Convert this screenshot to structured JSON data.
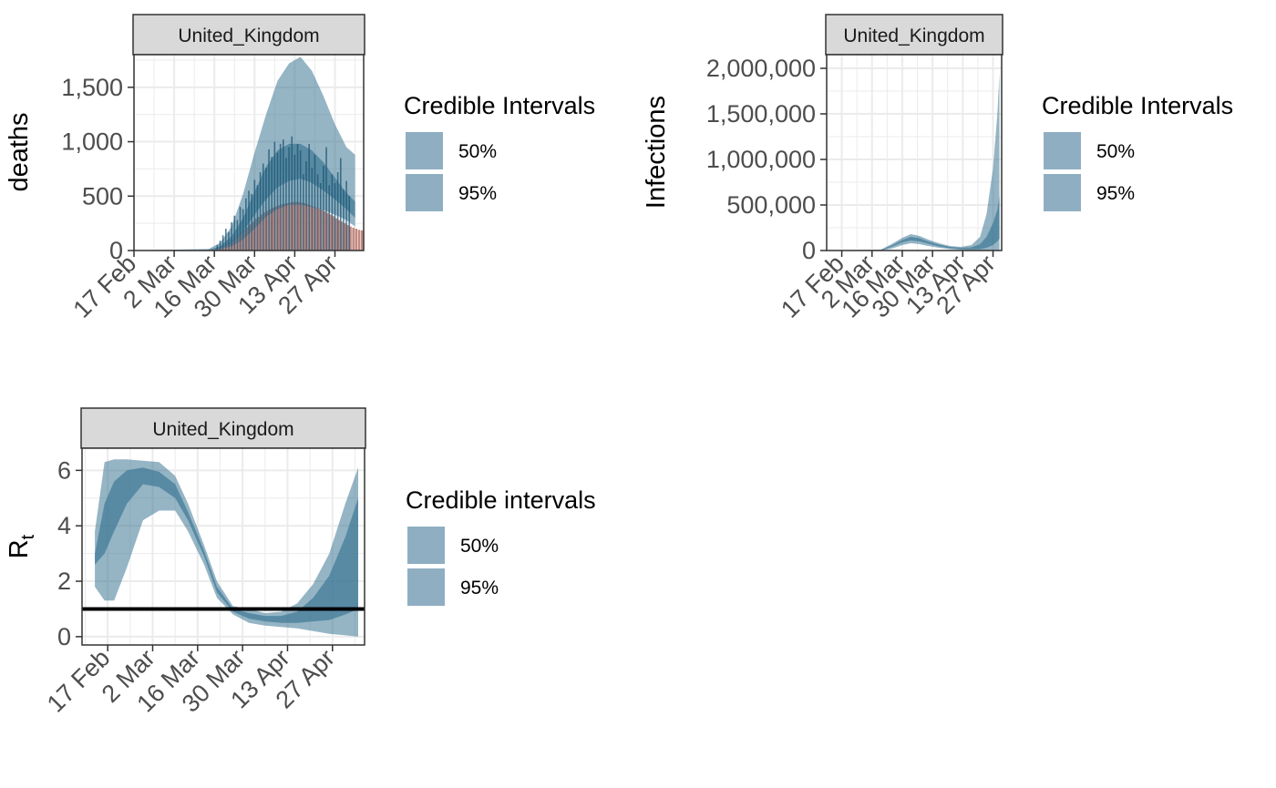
{
  "chart_data": [
    {
      "type": "area",
      "panel": "deaths",
      "strip": "United_Kingdom",
      "ylabel": "deaths",
      "x_ticks": [
        "17 Feb",
        "2 Mar",
        "16 Mar",
        "30 Mar",
        "13 Apr",
        "27 Apr"
      ],
      "x_tick_dates": [
        "2020-02-17",
        "2020-03-02",
        "2020-03-16",
        "2020-03-30",
        "2020-04-13",
        "2020-04-27"
      ],
      "xlim": [
        "2020-02-17",
        "2020-05-07"
      ],
      "y_ticks": [
        0,
        500,
        1000,
        1500
      ],
      "y_tick_labels": [
        "0",
        "500",
        "1,000",
        "1,500"
      ],
      "ylim": [
        0,
        1800
      ],
      "grid": true,
      "legend": {
        "title": "Credible Intervals",
        "position": "right",
        "entries": [
          "50%",
          "95%"
        ]
      },
      "series": [
        {
          "name": "95%",
          "color": "#3e7896",
          "opacity": 0.55,
          "x": [
            "2020-02-17",
            "2020-03-14",
            "2020-03-18",
            "2020-03-22",
            "2020-03-26",
            "2020-03-30",
            "2020-04-03",
            "2020-04-07",
            "2020-04-11",
            "2020-04-15",
            "2020-04-19",
            "2020-04-23",
            "2020-04-27",
            "2020-05-01",
            "2020-05-04"
          ],
          "low": [
            0,
            0,
            10,
            40,
            100,
            200,
            310,
            380,
            420,
            420,
            400,
            370,
            330,
            280,
            220
          ],
          "high": [
            0,
            15,
            70,
            220,
            520,
            900,
            1250,
            1560,
            1720,
            1780,
            1650,
            1420,
            1160,
            950,
            880
          ]
        },
        {
          "name": "50%",
          "color": "#3e7896",
          "opacity": 0.7,
          "x": [
            "2020-02-17",
            "2020-03-14",
            "2020-03-18",
            "2020-03-22",
            "2020-03-26",
            "2020-03-30",
            "2020-04-03",
            "2020-04-07",
            "2020-04-11",
            "2020-04-15",
            "2020-04-19",
            "2020-04-23",
            "2020-04-27",
            "2020-05-01",
            "2020-05-04"
          ],
          "low": [
            0,
            0,
            20,
            70,
            170,
            330,
            470,
            580,
            640,
            660,
            620,
            550,
            470,
            380,
            300
          ],
          "high": [
            0,
            5,
            40,
            130,
            300,
            540,
            770,
            920,
            980,
            980,
            920,
            810,
            670,
            530,
            450
          ]
        }
      ],
      "observed_bars": {
        "color": "#b9736b",
        "start": "2020-03-07",
        "values": [
          1,
          1,
          1,
          2,
          3,
          5,
          7,
          9,
          12,
          18,
          25,
          35,
          45,
          60,
          75,
          95,
          115,
          140,
          165,
          190,
          215,
          240,
          265,
          290,
          310,
          330,
          350,
          365,
          380,
          395,
          405,
          415,
          425,
          430,
          435,
          440,
          445,
          445,
          445,
          440,
          435,
          425,
          415,
          405,
          395,
          385,
          375,
          360,
          345,
          330,
          315,
          295,
          280,
          265,
          250,
          235,
          220,
          210,
          200,
          190,
          185,
          180
        ]
      },
      "observed_lines": {
        "color": "#1c5470",
        "start": "2020-03-17",
        "values": [
          50,
          90,
          140,
          200,
          170,
          260,
          320,
          280,
          400,
          380,
          480,
          550,
          520,
          650,
          600,
          720,
          800,
          760,
          930,
          860,
          1000,
          900,
          980,
          1020,
          850,
          950,
          1050,
          880,
          980,
          920,
          700,
          820,
          980,
          760,
          880,
          700,
          620,
          780,
          950,
          600,
          700,
          620,
          720,
          850,
          560,
          640,
          500
        ]
      }
    },
    {
      "type": "area",
      "panel": "infections",
      "strip": "United_Kingdom",
      "ylabel": "Infections",
      "x_ticks": [
        "17 Feb",
        "2 Mar",
        "16 Mar",
        "30 Mar",
        "13 Apr",
        "27 Apr"
      ],
      "x_tick_dates": [
        "2020-02-17",
        "2020-03-02",
        "2020-03-16",
        "2020-03-30",
        "2020-04-13",
        "2020-04-27"
      ],
      "xlim": [
        "2020-02-10",
        "2020-05-01"
      ],
      "y_ticks": [
        0,
        500000,
        1000000,
        1500000,
        2000000
      ],
      "y_tick_labels": [
        "0",
        "500,000",
        "1,000,000",
        "1,500,000",
        "2,000,000"
      ],
      "ylim": [
        0,
        2150000
      ],
      "grid": true,
      "legend": {
        "title": "Credible Intervals",
        "position": "right",
        "entries": [
          "50%",
          "95%"
        ]
      },
      "series": [
        {
          "name": "95%",
          "color": "#3e7896",
          "opacity": 0.55,
          "x": [
            "2020-02-10",
            "2020-03-06",
            "2020-03-11",
            "2020-03-16",
            "2020-03-20",
            "2020-03-24",
            "2020-03-28",
            "2020-04-02",
            "2020-04-07",
            "2020-04-12",
            "2020-04-17",
            "2020-04-21",
            "2020-04-24",
            "2020-04-27",
            "2020-04-29",
            "2020-04-30"
          ],
          "low": [
            0,
            0,
            20000,
            60000,
            80000,
            70000,
            50000,
            30000,
            15000,
            8000,
            4000,
            2000,
            1000,
            500,
            200,
            100
          ],
          "high": [
            0,
            10000,
            70000,
            140000,
            180000,
            160000,
            120000,
            80000,
            50000,
            40000,
            60000,
            150000,
            400000,
            900000,
            1500000,
            1950000
          ]
        },
        {
          "name": "50%",
          "color": "#3e7896",
          "opacity": 0.7,
          "x": [
            "2020-02-10",
            "2020-03-06",
            "2020-03-11",
            "2020-03-16",
            "2020-03-20",
            "2020-03-24",
            "2020-03-28",
            "2020-04-02",
            "2020-04-07",
            "2020-04-12",
            "2020-04-17",
            "2020-04-21",
            "2020-04-24",
            "2020-04-27",
            "2020-04-29",
            "2020-04-30"
          ],
          "low": [
            0,
            0,
            40000,
            90000,
            110000,
            100000,
            75000,
            45000,
            25000,
            15000,
            12000,
            15000,
            30000,
            60000,
            100000,
            130000
          ],
          "high": [
            0,
            5000,
            55000,
            115000,
            150000,
            135000,
            100000,
            65000,
            40000,
            30000,
            35000,
            70000,
            150000,
            300000,
            450000,
            600000
          ]
        }
      ]
    },
    {
      "type": "area",
      "panel": "rt",
      "strip": "United_Kingdom",
      "ylabel": "Rt",
      "x_ticks": [
        "17 Feb",
        "2 Mar",
        "16 Mar",
        "30 Mar",
        "13 Apr",
        "27 Apr"
      ],
      "x_tick_dates": [
        "2020-02-17",
        "2020-03-02",
        "2020-03-16",
        "2020-03-30",
        "2020-04-13",
        "2020-04-27"
      ],
      "xlim": [
        "2020-02-09",
        "2020-05-07"
      ],
      "y_ticks": [
        0,
        2,
        4,
        6
      ],
      "y_tick_labels": [
        "0",
        "2",
        "4",
        "6"
      ],
      "ylim": [
        -0.3,
        6.8
      ],
      "grid": true,
      "reference_line": 1,
      "legend": {
        "title": "Credible intervals",
        "position": "right",
        "entries": [
          "50%",
          "95%"
        ]
      },
      "series": [
        {
          "name": "95%",
          "color": "#3e7896",
          "opacity": 0.55,
          "x": [
            "2020-02-13",
            "2020-02-16",
            "2020-02-19",
            "2020-02-23",
            "2020-02-28",
            "2020-03-04",
            "2020-03-09",
            "2020-03-13",
            "2020-03-18",
            "2020-03-22",
            "2020-03-27",
            "2020-04-01",
            "2020-04-06",
            "2020-04-11",
            "2020-04-16",
            "2020-04-21",
            "2020-04-26",
            "2020-05-01",
            "2020-05-05"
          ],
          "low": [
            1.8,
            1.3,
            1.3,
            2.5,
            4.2,
            4.55,
            4.55,
            3.8,
            2.6,
            1.4,
            0.8,
            0.5,
            0.4,
            0.35,
            0.3,
            0.2,
            0.1,
            0.05,
            0.0
          ],
          "high": [
            3.8,
            6.3,
            6.4,
            6.4,
            6.35,
            6.3,
            5.8,
            4.8,
            3.3,
            2.0,
            1.1,
            1.0,
            0.85,
            0.9,
            1.2,
            1.9,
            3.0,
            4.8,
            6.1
          ]
        },
        {
          "name": "50%",
          "color": "#3e7896",
          "opacity": 0.7,
          "x": [
            "2020-02-13",
            "2020-02-16",
            "2020-02-19",
            "2020-02-23",
            "2020-02-28",
            "2020-03-04",
            "2020-03-09",
            "2020-03-13",
            "2020-03-18",
            "2020-03-22",
            "2020-03-27",
            "2020-04-01",
            "2020-04-06",
            "2020-04-11",
            "2020-04-16",
            "2020-04-21",
            "2020-04-26",
            "2020-05-01",
            "2020-05-05"
          ],
          "low": [
            2.6,
            3.0,
            3.8,
            4.8,
            5.5,
            5.4,
            5.0,
            4.2,
            2.9,
            1.6,
            0.9,
            0.65,
            0.55,
            0.5,
            0.5,
            0.55,
            0.6,
            0.8,
            1.0
          ],
          "high": [
            3.0,
            4.8,
            5.6,
            6.0,
            6.1,
            5.95,
            5.5,
            4.5,
            3.1,
            1.8,
            1.0,
            0.85,
            0.75,
            0.75,
            0.9,
            1.4,
            2.2,
            3.6,
            5.0
          ]
        }
      ]
    }
  ],
  "colors": {
    "band": "#3e7896",
    "bars": "#b9736b",
    "strip_bg": "#d9d9d9",
    "grid": "#ebebeb",
    "legend_fill": "#8faec2"
  }
}
